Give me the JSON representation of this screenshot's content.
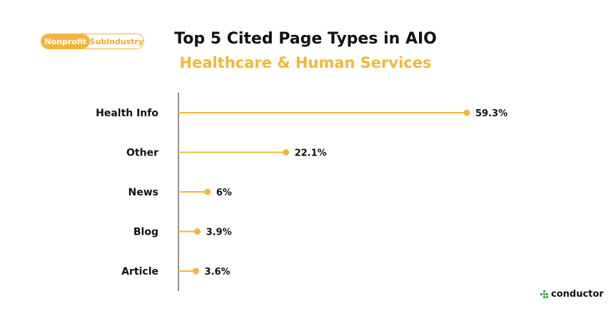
{
  "badge": {
    "active": "Nonprofit",
    "inactive": "Subindustry"
  },
  "colors": {
    "accent": "#f2b63e",
    "logo_green": "#3aa64b",
    "text": "#111111"
  },
  "brand": {
    "name": "conductor",
    "icon": "conductor-logo-icon"
  },
  "chart_data": {
    "type": "bar",
    "title": "Top 5 Cited Page Types in AIO",
    "subtitle": "Healthcare & Human Services",
    "categories": [
      "Health Info",
      "Other",
      "News",
      "Blog",
      "Article"
    ],
    "values": [
      59.3,
      22.1,
      6,
      3.9,
      3.6
    ],
    "value_labels": [
      "59.3%",
      "22.1%",
      "6%",
      "3.9%",
      "3.6%"
    ],
    "orientation": "horizontal",
    "style": "lollipop",
    "xlim": [
      0,
      59.3
    ],
    "grid": false
  }
}
